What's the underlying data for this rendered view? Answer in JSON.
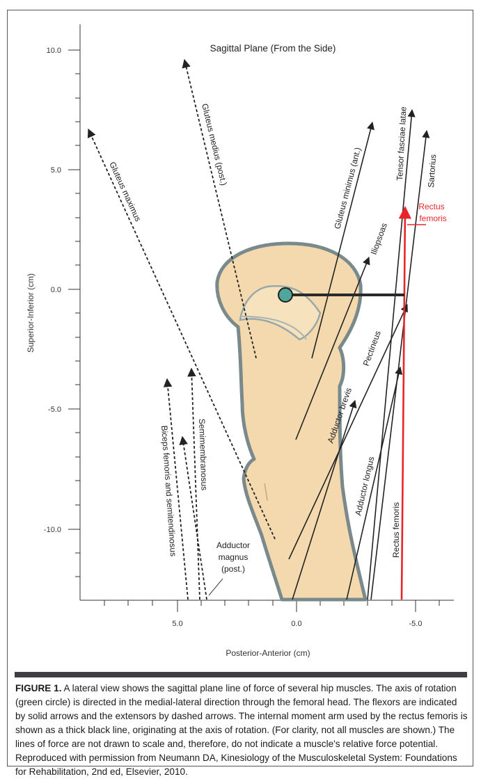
{
  "title": "Sagittal Plane (From the Side)",
  "axes": {
    "y_label": "Superior-Inferior (cm)",
    "x_label": "Posterior-Anterior (cm)",
    "y_ticks": [
      "10.0",
      "5.0",
      "0.0",
      "-5.0",
      "-10.0"
    ],
    "x_ticks": [
      "5.0",
      "0.0",
      "-5.0"
    ]
  },
  "muscles": {
    "gluteus_maximus": "Gluteus maximus",
    "gluteus_medius": "Gluteus medius (post.)",
    "gluteus_minimus": "Gluteus minimus (ant.)",
    "iliopsoas": "Iliopsoas",
    "tensor": "Tensor fasciae latae",
    "sartorius": "Sartorius",
    "rectus_red_1": "Rectus",
    "rectus_red_2": "femoris",
    "pectineus": "Pectineus",
    "adductor_brevis": "Adductor brevis",
    "adductor_longus": "Adductor longus",
    "rectus_femoris": "Rectus femoris",
    "biceps": "Biceps femoris and semitendinosus",
    "semimembranosus": "Semimembranosus",
    "adductor_magnus_1": "Adductor",
    "adductor_magnus_2": "magnus",
    "adductor_magnus_3": "(post.)"
  },
  "caption": {
    "label": "FIGURE 1.",
    "text": " A lateral view shows the sagittal plane line of force of several hip muscles. The axis of rotation (green circle) is directed in the medial-lateral direction through the femoral head. The flexors are indicated by solid arrows and the extensors by dashed arrows. The internal moment arm used by the rectus femoris is shown as a thick black line, originating at the axis of rotation. (For clarity, not all muscles are shown.) The lines of force are not drawn to scale and, therefore, do not indicate a muscle's relative force potential. Reproduced with permission from Neumann DA, Kinesiology of the Musculoskeletal System: Foundations for Rehabilitation, 2nd ed, Elsevier, 2010."
  },
  "colors": {
    "bone": "#f3d9ad",
    "bone_outline": "#7a8a8c",
    "axis_circle": "#4ea79a",
    "rectus_red": "#e8262a",
    "caption_bar": "#3d3f42"
  }
}
